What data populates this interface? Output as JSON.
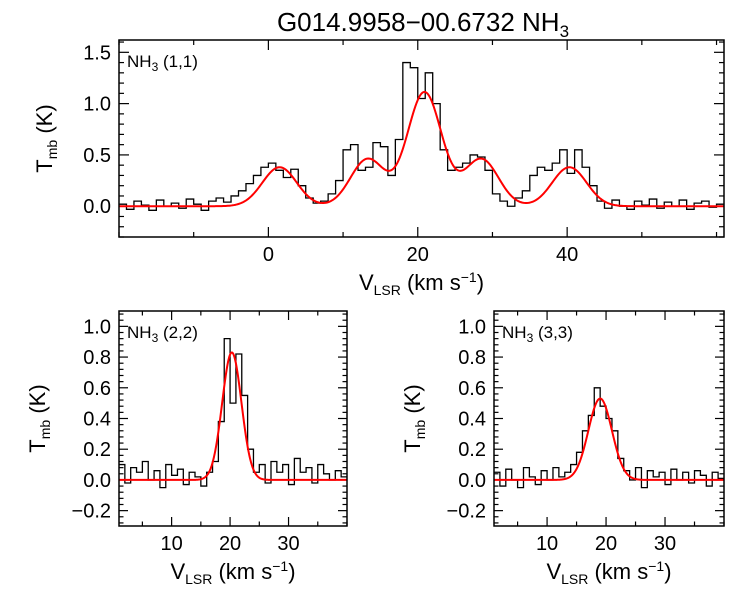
{
  "figure": {
    "title": {
      "name": "G014.9958−00.6732 NH",
      "sub": "3"
    }
  },
  "chart_data": [
    {
      "type": "line",
      "panel": "NH3 (1,1)",
      "label": {
        "pre": "NH",
        "sub": "3",
        "post": " (1,1)"
      },
      "xlabel": {
        "main": "V",
        "sub": "LSR",
        "mid": " (km s",
        "sup": "−1",
        "end": ")"
      },
      "ylabel": {
        "main": "T",
        "sub": "mb",
        "end": " (K)"
      },
      "xlim": [
        -20,
        61
      ],
      "ylim": [
        -0.3,
        1.62
      ],
      "xticks": [
        0,
        20,
        40
      ],
      "xtick_labels": [
        "0",
        "20",
        "40"
      ],
      "yticks": [
        0,
        0.5,
        1.0,
        1.5
      ],
      "ytick_labels": [
        "0.0",
        "0.5",
        "1.0",
        "1.5"
      ],
      "grid": false,
      "series": [
        {
          "kind": "observed_spectrum",
          "color": "#000000",
          "x": [
            -19.5,
            -18.5,
            -17.5,
            -16.5,
            -15.5,
            -14.5,
            -13.5,
            -12.5,
            -11.5,
            -10.5,
            -9.5,
            -8.5,
            -7.5,
            -6.5,
            -5.5,
            -4.5,
            -3.5,
            -2.5,
            -1.5,
            -0.5,
            0.5,
            1.5,
            2.5,
            3.5,
            4.5,
            5.5,
            6.5,
            7.5,
            8.5,
            9.5,
            10.5,
            11.5,
            12.5,
            13.5,
            14.5,
            15.5,
            16.5,
            17.5,
            18.5,
            19.5,
            20.5,
            21.5,
            22.5,
            23.5,
            24.5,
            25.5,
            26.5,
            27.5,
            28.5,
            29.5,
            30.5,
            31.5,
            32.5,
            33.5,
            34.5,
            35.5,
            36.5,
            37.5,
            38.5,
            39.5,
            40.5,
            41.5,
            42.5,
            43.5,
            44.5,
            45.5,
            46.5,
            47.5,
            48.5,
            49.5,
            50.5,
            51.5,
            52.5,
            53.5,
            54.5,
            55.5,
            56.5,
            57.5,
            58.5,
            59.5,
            60.5
          ],
          "y": [
            0.02,
            -0.03,
            0.05,
            0.01,
            -0.04,
            0.06,
            0.0,
            0.03,
            -0.02,
            0.07,
            0.02,
            -0.04,
            0.05,
            0.08,
            0.04,
            0.1,
            0.15,
            0.22,
            0.3,
            0.38,
            0.42,
            0.35,
            0.28,
            0.36,
            0.2,
            0.08,
            0.03,
            0.05,
            0.12,
            0.25,
            0.55,
            0.6,
            0.35,
            0.38,
            0.62,
            0.58,
            0.3,
            0.65,
            1.4,
            1.35,
            1.05,
            1.3,
            1.0,
            0.55,
            0.35,
            0.38,
            0.42,
            0.5,
            0.48,
            0.35,
            0.12,
            0.05,
            0.0,
            0.08,
            0.15,
            0.3,
            0.38,
            0.35,
            0.42,
            0.55,
            0.32,
            0.55,
            0.38,
            0.2,
            0.05,
            -0.02,
            0.06,
            0.0,
            -0.03,
            0.05,
            0.01,
            0.07,
            -0.02,
            0.04,
            0.0,
            0.06,
            -0.03,
            0.03,
            0.05,
            -0.01,
            0.02
          ]
        },
        {
          "kind": "hyperfine_fit",
          "color": "#ff0000",
          "components": [
            {
              "center": 1.5,
              "amplitude": 0.38,
              "sigma": 2.3
            },
            {
              "center": 13.3,
              "amplitude": 0.46,
              "sigma": 2.3
            },
            {
              "center": 20.9,
              "amplitude": 1.11,
              "sigma": 2.3
            },
            {
              "center": 28.5,
              "amplitude": 0.46,
              "sigma": 2.3
            },
            {
              "center": 40.3,
              "amplitude": 0.38,
              "sigma": 2.3
            }
          ]
        }
      ]
    },
    {
      "type": "line",
      "panel": "NH3 (2,2)",
      "label": {
        "pre": "NH",
        "sub": "3",
        "post": " (2,2)"
      },
      "xlabel": {
        "main": "V",
        "sub": "LSR",
        "mid": " (km s",
        "sup": "−1",
        "end": ")"
      },
      "ylabel": {
        "main": "T",
        "sub": "mb",
        "end": " (K)"
      },
      "xlim": [
        1,
        40
      ],
      "ylim": [
        -0.3,
        1.1
      ],
      "xticks": [
        10,
        20,
        30
      ],
      "xtick_labels": [
        "10",
        "20",
        "30"
      ],
      "yticks": [
        -0.2,
        0.0,
        0.2,
        0.4,
        0.6,
        0.8,
        1.0
      ],
      "ytick_labels": [
        "−0.2",
        "0.0",
        "0.2",
        "0.4",
        "0.6",
        "0.8",
        "1.0"
      ],
      "grid": false,
      "series": [
        {
          "kind": "observed_spectrum",
          "color": "#000000",
          "x": [
            1.5,
            2.5,
            3.5,
            4.5,
            5.5,
            6.5,
            7.5,
            8.5,
            9.5,
            10.5,
            11.5,
            12.5,
            13.5,
            14.5,
            15.5,
            16.5,
            17.5,
            18.5,
            19.5,
            20.5,
            21.5,
            22.5,
            23.5,
            24.5,
            25.5,
            26.5,
            27.5,
            28.5,
            29.5,
            30.5,
            31.5,
            32.5,
            33.5,
            34.5,
            35.5,
            36.5,
            37.5,
            38.5,
            39.5
          ],
          "y": [
            0.1,
            -0.02,
            0.08,
            0.05,
            0.12,
            0.0,
            0.06,
            -0.05,
            0.1,
            0.03,
            0.07,
            -0.03,
            0.05,
            0.02,
            -0.04,
            0.05,
            0.12,
            0.38,
            0.92,
            0.5,
            0.82,
            0.55,
            0.2,
            0.05,
            0.1,
            -0.02,
            0.12,
            0.05,
            0.1,
            -0.03,
            0.14,
            0.05,
            0.08,
            -0.02,
            0.1,
            0.04,
            0.0,
            0.06,
            0.02
          ]
        },
        {
          "kind": "gaussian_fit",
          "color": "#ff0000",
          "components": [
            {
              "center": 20.3,
              "amplitude": 0.83,
              "sigma": 1.65
            }
          ]
        }
      ]
    },
    {
      "type": "line",
      "panel": "NH3 (3,3)",
      "label": {
        "pre": "NH",
        "sub": "3",
        "post": " (3,3)"
      },
      "xlabel": {
        "main": "V",
        "sub": "LSR",
        "mid": " (km s",
        "sup": "−1",
        "end": ")"
      },
      "ylabel": {
        "main": "T",
        "sub": "mb",
        "end": " (K)"
      },
      "xlim": [
        1,
        40
      ],
      "ylim": [
        -0.3,
        1.1
      ],
      "xticks": [
        10,
        20,
        30
      ],
      "xtick_labels": [
        "10",
        "20",
        "30"
      ],
      "yticks": [
        -0.2,
        0.0,
        0.2,
        0.4,
        0.6,
        0.8,
        1.0
      ],
      "ytick_labels": [
        "−0.2",
        "0.0",
        "0.2",
        "0.4",
        "0.6",
        "0.8",
        "1.0"
      ],
      "grid": false,
      "series": [
        {
          "kind": "observed_spectrum",
          "color": "#000000",
          "x": [
            1.5,
            2.5,
            3.5,
            4.5,
            5.5,
            6.5,
            7.5,
            8.5,
            9.5,
            10.5,
            11.5,
            12.5,
            13.5,
            14.5,
            15.5,
            16.5,
            17.5,
            18.5,
            19.5,
            20.5,
            21.5,
            22.5,
            23.5,
            24.5,
            25.5,
            26.5,
            27.5,
            28.5,
            29.5,
            30.5,
            31.5,
            32.5,
            33.5,
            34.5,
            35.5,
            36.5,
            37.5,
            38.5,
            39.5
          ],
          "y": [
            0.05,
            -0.04,
            0.07,
            0.0,
            -0.05,
            0.08,
            0.02,
            -0.03,
            0.06,
            0.0,
            0.08,
            0.02,
            0.05,
            0.1,
            0.18,
            0.32,
            0.42,
            0.6,
            0.48,
            0.4,
            0.32,
            0.14,
            0.06,
            0.0,
            0.08,
            -0.05,
            0.06,
            0.02,
            0.05,
            -0.03,
            0.07,
            0.0,
            0.05,
            -0.02,
            0.06,
            0.03,
            -0.04,
            0.05,
            0.01
          ]
        },
        {
          "kind": "gaussian_fit",
          "color": "#ff0000",
          "components": [
            {
              "center": 19.0,
              "amplitude": 0.53,
              "sigma": 2.0
            }
          ]
        }
      ]
    }
  ]
}
